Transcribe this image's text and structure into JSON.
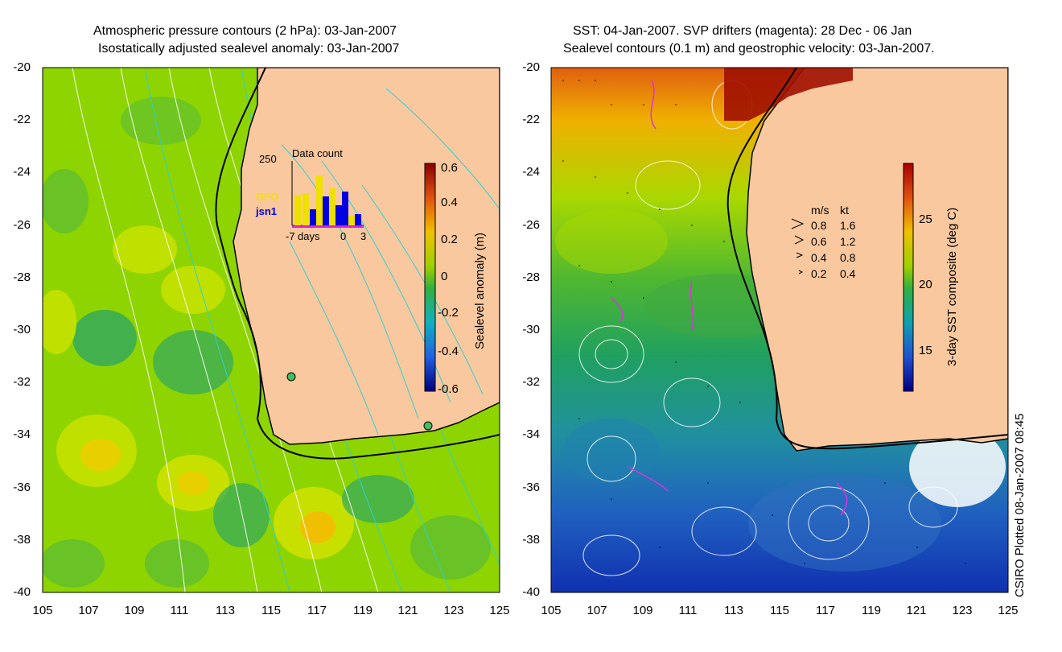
{
  "left_map": {
    "title_line1": "Atmospheric pressure contours (2 hPa): 03-Jan-2007",
    "title_line2": "Isostatically adjusted sealevel anomaly: 03-Jan-2007",
    "colorbar": {
      "label": "Sealevel anomaly (m)",
      "ticks": [
        "0.6",
        "0.4",
        "0.2",
        "0",
        "-0.2",
        "-0.4",
        "-0.6"
      ]
    },
    "inset": {
      "title": "Data count",
      "ymax": "250",
      "legend_gfo": "GFO",
      "legend_jsn1": "jsn1",
      "xlabel": "days",
      "x_tick_left": "-7",
      "x_tick_zero": "0",
      "x_tick_right": "3"
    },
    "colors": {
      "gfo": "#f0e000",
      "jsn1": "#0000e0",
      "land": "#f9c89e"
    }
  },
  "right_map": {
    "title_line1": "SST: 04-Jan-2007. SVP drifters (magenta): 28 Dec - 06 Jan",
    "title_line2": "Sealevel contours (0.1 m) and geostrophic velocity: 03-Jan-2007.",
    "colorbar": {
      "label": "3-day SST composite (deg C)",
      "ticks": [
        "25",
        "20",
        "15"
      ]
    },
    "velocity_legend": {
      "unit_ms": "m/s",
      "unit_kt": "kt",
      "rows": [
        {
          "ms": "0.8",
          "kt": "1.6"
        },
        {
          "ms": "0.6",
          "kt": "1.2"
        },
        {
          "ms": "0.4",
          "kt": "0.8"
        },
        {
          "ms": "0.2",
          "kt": "0.4"
        }
      ]
    }
  },
  "axes": {
    "lat_ticks": [
      "-20",
      "-22",
      "-24",
      "-26",
      "-28",
      "-30",
      "-32",
      "-34",
      "-36",
      "-38",
      "-40"
    ],
    "lon_ticks": [
      "105",
      "107",
      "109",
      "111",
      "113",
      "115",
      "117",
      "119",
      "121",
      "123",
      "125"
    ]
  },
  "credit": "CSIRO Plotted 08-Jan-2007 08:45"
}
